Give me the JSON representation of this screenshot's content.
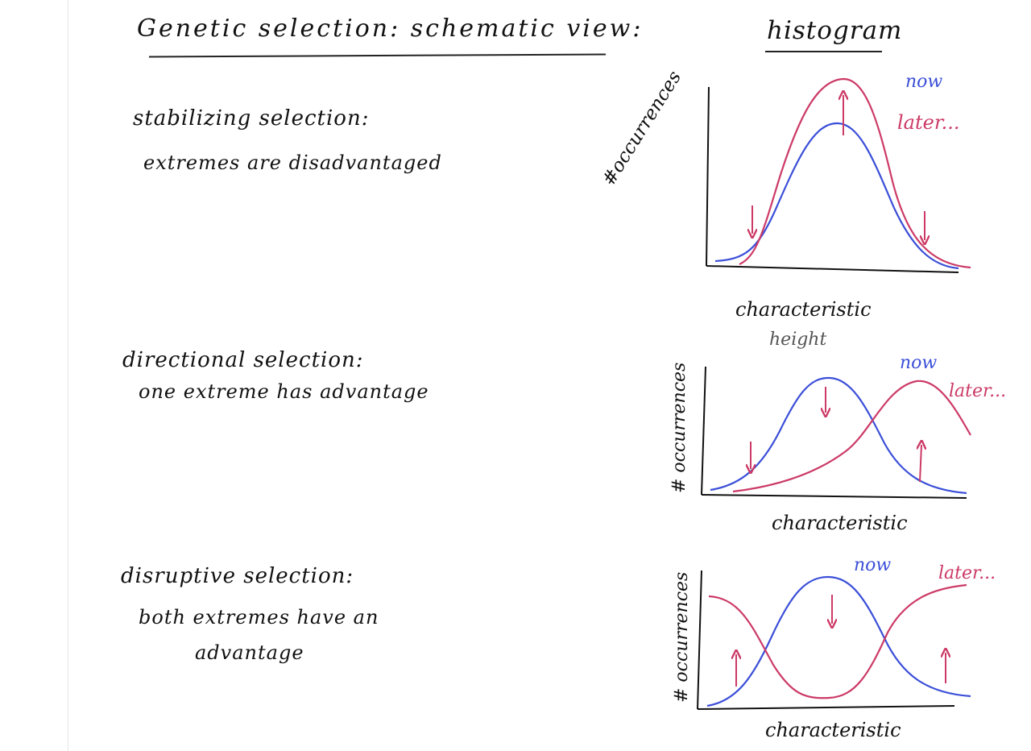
{
  "header": {
    "title": "Genetic selection: schematic view:",
    "histogram_heading": "histogram"
  },
  "sections": [
    {
      "title": "stabilizing selection:",
      "description": "extremes are disadvantaged",
      "panel": {
        "y_label": "#occurrences",
        "x_label": "characteristic",
        "x_example": "height",
        "legend_now": "now",
        "legend_later": "later..."
      }
    },
    {
      "title": "directional selection:",
      "description": "one extreme has advantage",
      "panel": {
        "y_label": "# occurrences",
        "x_label": "characteristic",
        "legend_now": "now",
        "legend_later": "later..."
      }
    },
    {
      "title": "disruptive selection:",
      "description_line1": "both extremes have an",
      "description_line2": "advantage",
      "panel": {
        "y_label": "# occurrences",
        "x_label": "characteristic",
        "legend_now": "now",
        "legend_later": "later..."
      }
    }
  ],
  "colors": {
    "ink": "#111111",
    "now": "#3b4fd8",
    "later": "#cc3a66",
    "example": "#555555"
  },
  "icons": [
    "arrow-down-icon",
    "arrow-up-icon"
  ]
}
